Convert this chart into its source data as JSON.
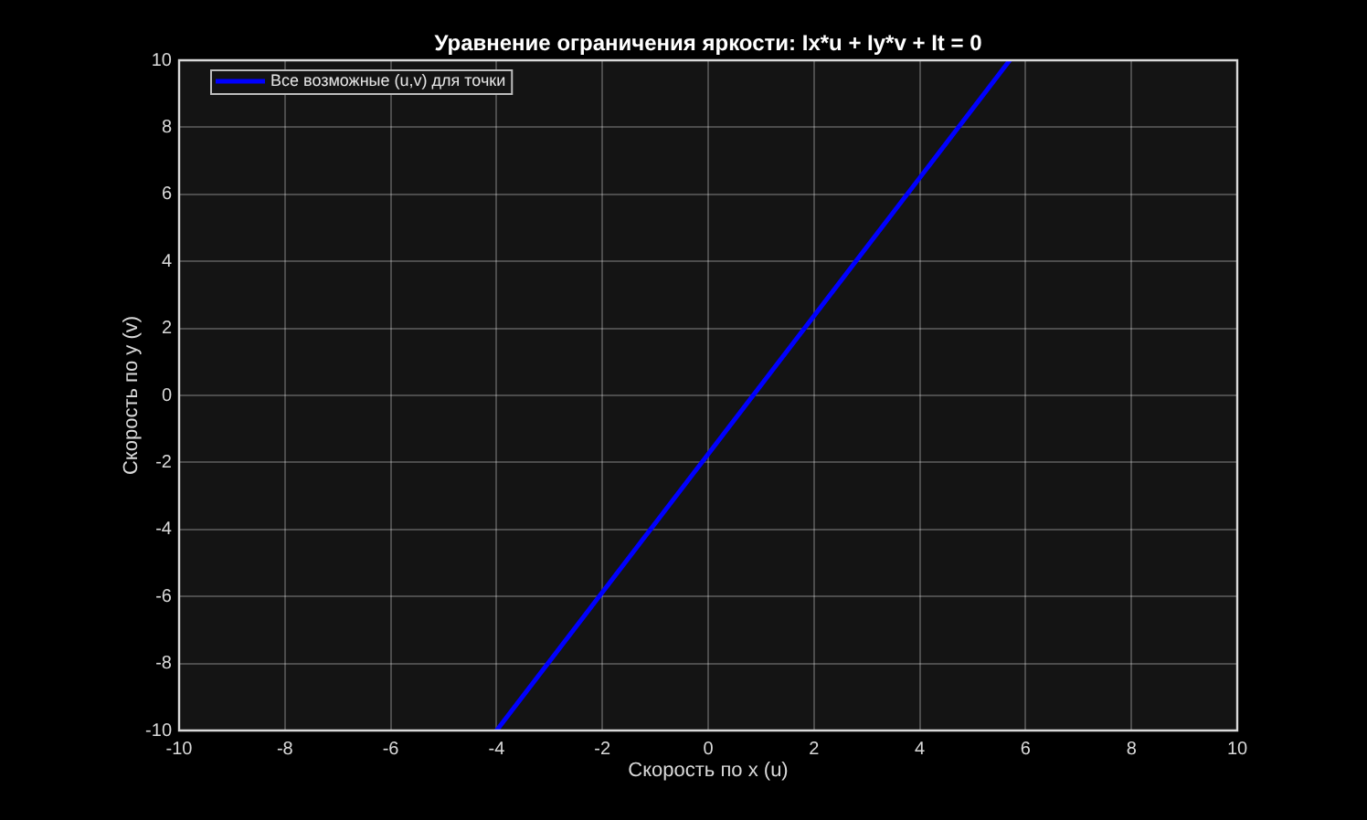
{
  "chart_data": {
    "type": "line",
    "title": "Уравнение ограничения яркости: Ix*u + Iy*v + It = 0",
    "xlabel": "Скорость по x (u)",
    "ylabel": "Скорость по y (v)",
    "xlim": [
      -10,
      10
    ],
    "ylim": [
      -10,
      10
    ],
    "xticks": [
      -10,
      -8,
      -6,
      -4,
      -2,
      0,
      2,
      4,
      6,
      8,
      10
    ],
    "yticks": [
      -10,
      -8,
      -6,
      -4,
      -2,
      0,
      2,
      4,
      6,
      8,
      10
    ],
    "grid": true,
    "legend": "top left",
    "series": [
      {
        "name": "Все возможные (u,v) для точки",
        "color": "#0000ff",
        "x": [
          -4,
          5.7
        ],
        "values": [
          -10,
          10
        ]
      }
    ]
  }
}
